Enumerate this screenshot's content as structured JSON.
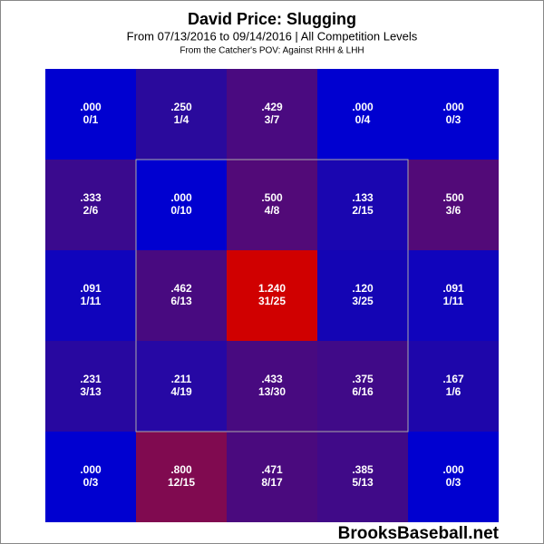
{
  "chart_data": {
    "type": "heatmap",
    "title": "David Price: Slugging",
    "subtitle": "From 07/13/2016 to 09/14/2016 | All Competition Levels",
    "note": "From the Catcher's POV:  Against RHH & LHH",
    "watermark": "BrooksBaseball.net",
    "values": [
      [
        0,
        0.25,
        0.429,
        0,
        0
      ],
      [
        0.333,
        0,
        0.5,
        0.133,
        0.5
      ],
      [
        0.091,
        0.462,
        1.24,
        0.12,
        0.091
      ],
      [
        0.231,
        0.211,
        0.433,
        0.375,
        0.167
      ],
      [
        0,
        0.8,
        0.471,
        0.385,
        0
      ]
    ],
    "value_labels": [
      [
        ".000",
        ".250",
        ".429",
        ".000",
        ".000"
      ],
      [
        ".333",
        ".000",
        ".500",
        ".133",
        ".500"
      ],
      [
        ".091",
        ".462",
        "1.240",
        ".120",
        ".091"
      ],
      [
        ".231",
        ".211",
        ".433",
        ".375",
        ".167"
      ],
      [
        ".000",
        ".800",
        ".471",
        ".385",
        ".000"
      ]
    ],
    "counts": [
      [
        "0/1",
        "1/4",
        "3/7",
        "0/4",
        "0/3"
      ],
      [
        "2/6",
        "0/10",
        "4/8",
        "2/15",
        "3/6"
      ],
      [
        "1/11",
        "6/13",
        "31/25",
        "3/25",
        "1/11"
      ],
      [
        "3/13",
        "4/19",
        "13/30",
        "6/16",
        "1/6"
      ],
      [
        "0/3",
        "12/15",
        "8/17",
        "5/13",
        "0/3"
      ]
    ],
    "colors": [
      [
        "#0000d0",
        "#2a0a9c",
        "#4a0a80",
        "#0000d0",
        "#0000d0"
      ],
      [
        "#3a0a8e",
        "#0000d0",
        "#520a78",
        "#1a06b0",
        "#520a78"
      ],
      [
        "#1004bc",
        "#480a80",
        "#d00000",
        "#1405b4",
        "#1004bc"
      ],
      [
        "#2808a0",
        "#2608a4",
        "#480a80",
        "#400a88",
        "#1e06aa"
      ],
      [
        "#0000d0",
        "#800a50",
        "#4a0a7e",
        "#400a88",
        "#0000d0"
      ]
    ]
  }
}
